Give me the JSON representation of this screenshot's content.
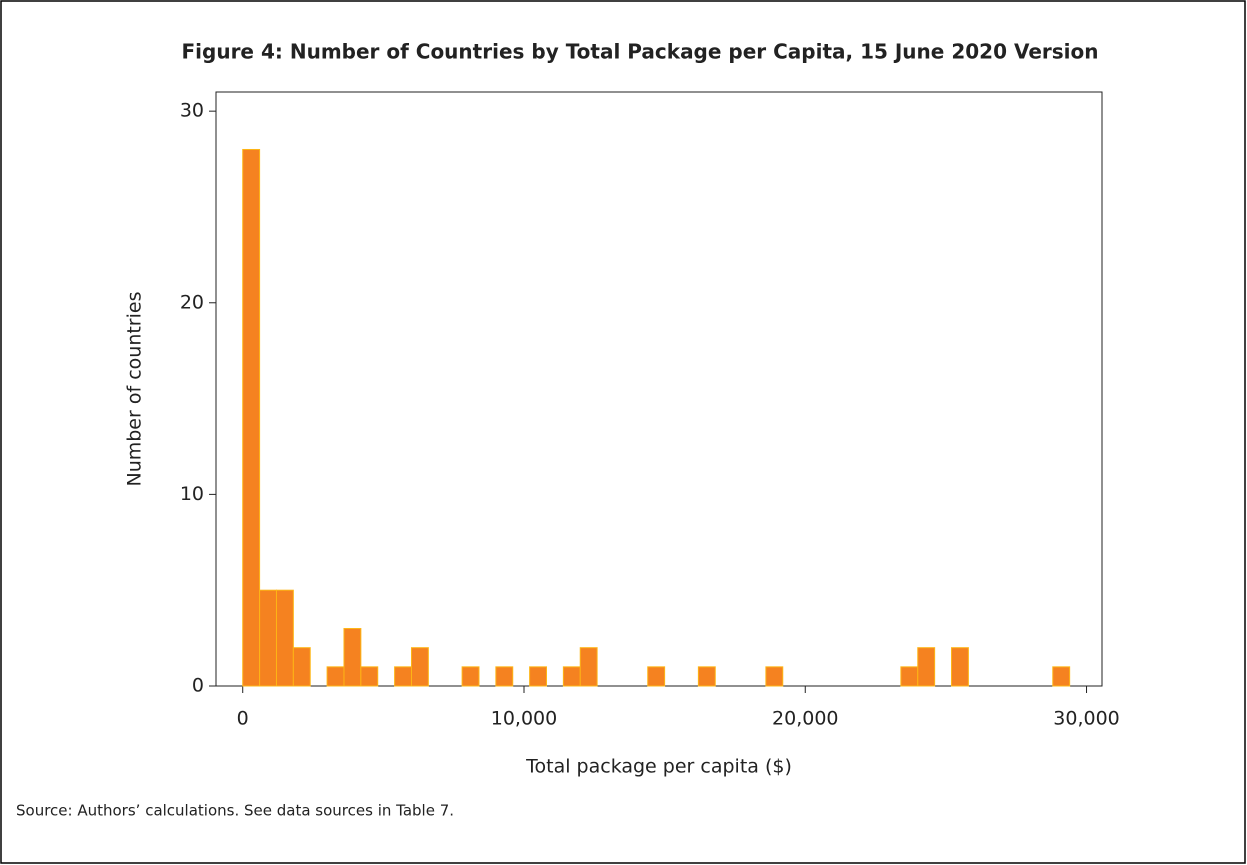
{
  "chart_data": {
    "type": "histogram",
    "title": "Figure 4: Number of Countries by Total Package per Capita, 15 June 2020 Version",
    "x_label": "Total package per capita ($)",
    "y_label": "Number of countries",
    "source": "Source: Authors’ calculations. See data sources in Table 7.",
    "color": "#f58220",
    "edgecolor": "#fdb515",
    "bins": [
      0,
      600,
      1200,
      1800,
      2400,
      3000,
      3600,
      4200,
      4800,
      5400,
      6000,
      6600,
      7200,
      7800,
      8400,
      9000,
      9600,
      10200,
      10800,
      11400,
      12000,
      12600,
      13200,
      13800,
      14400,
      15000,
      15600,
      16200,
      16800,
      17400,
      18000,
      18600,
      19200,
      19800,
      20400,
      21000,
      21600,
      22200,
      22800,
      23400,
      24000,
      24600,
      25200,
      25800,
      26400,
      27000,
      27600,
      28200,
      28800,
      29400
    ],
    "counts": [
      28,
      5,
      5,
      2,
      0,
      1,
      3,
      1,
      0,
      1,
      2,
      0,
      0,
      1,
      0,
      1,
      0,
      1,
      0,
      1,
      2,
      0,
      0,
      0,
      1,
      0,
      0,
      1,
      0,
      0,
      0,
      1,
      0,
      0,
      0,
      0,
      0,
      0,
      0,
      1,
      2,
      0,
      2,
      0,
      0,
      0,
      0,
      0,
      1
    ],
    "xlim": [
      -950,
      30550
    ],
    "ylim": [
      0,
      31
    ],
    "xticks": [
      0,
      {
        "value": 10000,
        "label": "10,000"
      },
      {
        "value": 20000,
        "label": "20,000"
      },
      {
        "value": 30000,
        "label": "30,000"
      }
    ],
    "yticks": [
      0,
      10,
      20,
      30
    ]
  }
}
